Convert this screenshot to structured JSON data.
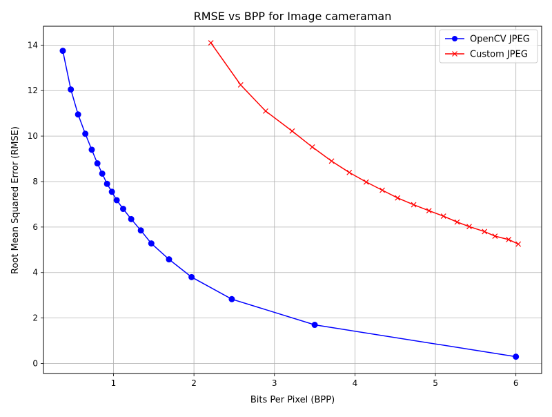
{
  "chart_data": {
    "type": "line",
    "title": "RMSE vs BPP for Image cameraman",
    "xlabel": "Bits Per Pixel (BPP)",
    "ylabel": "Root Mean Squared Error (RMSE)",
    "xlim": [
      0.13,
      6.32
    ],
    "ylim": [
      -0.44,
      14.83
    ],
    "xticks": [
      1,
      2,
      3,
      4,
      5,
      6
    ],
    "yticks": [
      0,
      2,
      4,
      6,
      8,
      10,
      12,
      14
    ],
    "grid": true,
    "legend_position": "top-right",
    "series": [
      {
        "name": "OpenCV JPEG",
        "color": "#0000ff",
        "marker": "circle",
        "x": [
          0.37,
          0.47,
          0.56,
          0.65,
          0.73,
          0.8,
          0.86,
          0.92,
          0.98,
          1.04,
          1.12,
          1.22,
          1.34,
          1.47,
          1.69,
          1.97,
          2.47,
          3.5,
          6.0
        ],
        "y": [
          13.75,
          12.05,
          10.95,
          10.1,
          9.4,
          8.8,
          8.35,
          7.9,
          7.55,
          7.18,
          6.8,
          6.35,
          5.85,
          5.28,
          4.58,
          3.8,
          2.83,
          1.7,
          0.3
        ]
      },
      {
        "name": "Custom JPEG",
        "color": "#ff0000",
        "marker": "x",
        "x": [
          2.21,
          2.58,
          2.89,
          3.22,
          3.47,
          3.71,
          3.93,
          4.14,
          4.34,
          4.53,
          4.73,
          4.92,
          5.1,
          5.27,
          5.42,
          5.61,
          5.74,
          5.91,
          6.03
        ],
        "y": [
          14.1,
          12.25,
          11.1,
          10.22,
          9.52,
          8.9,
          8.4,
          7.98,
          7.62,
          7.28,
          6.98,
          6.72,
          6.48,
          6.22,
          6.02,
          5.8,
          5.6,
          5.45,
          5.25
        ]
      }
    ]
  }
}
